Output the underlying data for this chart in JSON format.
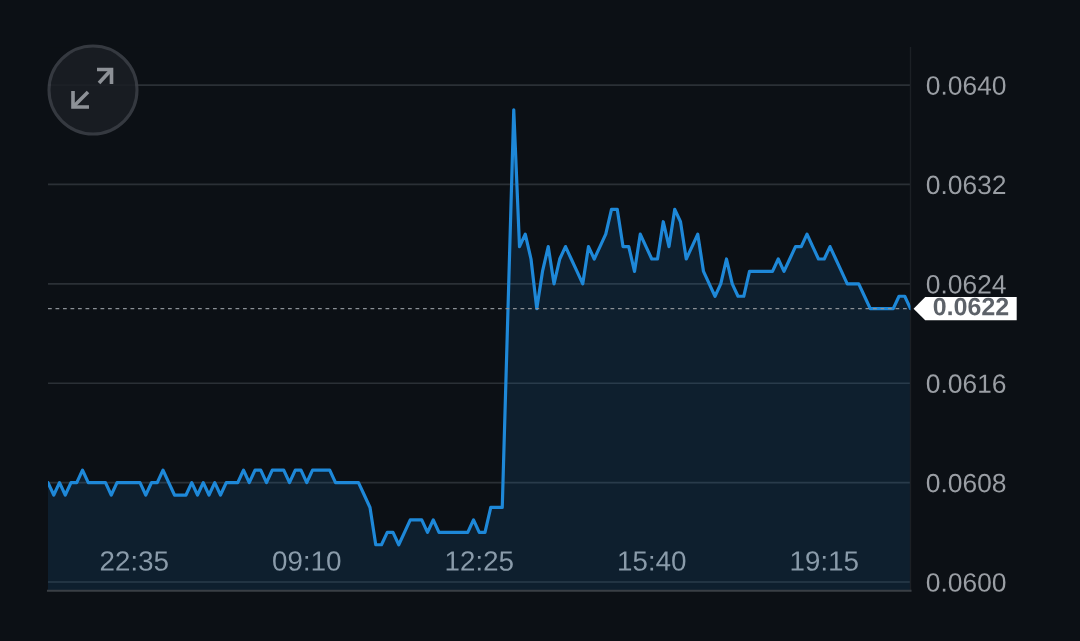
{
  "chart_data": {
    "type": "area",
    "categories": [
      null,
      null,
      null,
      null,
      null,
      null,
      null,
      null,
      null,
      null,
      null,
      null,
      null,
      null,
      null,
      "22:35",
      null,
      null,
      null,
      null,
      null,
      null,
      null,
      null,
      null,
      null,
      null,
      null,
      null,
      null,
      null,
      null,
      null,
      null,
      null,
      null,
      null,
      null,
      null,
      null,
      null,
      null,
      null,
      null,
      null,
      "09:10",
      null,
      null,
      null,
      null,
      null,
      null,
      null,
      null,
      null,
      null,
      null,
      null,
      null,
      null,
      null,
      null,
      null,
      null,
      null,
      null,
      null,
      null,
      null,
      null,
      null,
      null,
      null,
      null,
      null,
      "12:25",
      null,
      null,
      null,
      null,
      null,
      null,
      null,
      null,
      null,
      null,
      null,
      null,
      null,
      null,
      null,
      null,
      null,
      null,
      null,
      null,
      null,
      null,
      null,
      null,
      null,
      null,
      null,
      null,
      null,
      "15:40",
      null,
      null,
      null,
      null,
      null,
      null,
      null,
      null,
      null,
      null,
      null,
      null,
      null,
      null,
      null,
      null,
      null,
      null,
      null,
      null,
      null,
      null,
      null,
      null,
      null,
      null,
      null,
      null,
      null,
      "19:15",
      null,
      null,
      null,
      null,
      null,
      null,
      null,
      null,
      null,
      null,
      null,
      null,
      null,
      null,
      null
    ],
    "series": [
      {
        "color": "#1e88d8",
        "values": [
          0.0608,
          0.0607,
          0.0608,
          0.0607,
          0.0608,
          0.0608,
          0.0609,
          0.0608,
          0.0608,
          0.0608,
          0.0608,
          0.0607,
          0.0608,
          0.0608,
          0.0608,
          0.0608,
          0.0608,
          0.0607,
          0.0608,
          0.0608,
          0.0609,
          0.0608,
          0.0607,
          0.0607,
          0.0607,
          0.0608,
          0.0607,
          0.0608,
          0.0607,
          0.0608,
          0.0607,
          0.0608,
          0.0608,
          0.0608,
          0.0609,
          0.0608,
          0.0609,
          0.0609,
          0.0608,
          0.0609,
          0.0609,
          0.0609,
          0.0608,
          0.0609,
          0.0609,
          0.0608,
          0.0609,
          0.0609,
          0.0609,
          0.0609,
          0.0608,
          0.0608,
          0.0608,
          0.0608,
          0.0608,
          0.0607,
          0.0606,
          0.0603,
          0.0603,
          0.0604,
          0.0604,
          0.0603,
          0.0604,
          0.0605,
          0.0605,
          0.0605,
          0.0604,
          0.0605,
          0.0604,
          0.0604,
          0.0604,
          0.0604,
          0.0604,
          0.0604,
          0.0605,
          0.0604,
          0.0604,
          0.0606,
          0.0606,
          0.0606,
          0.0622,
          0.0638,
          0.0627,
          0.0628,
          0.0626,
          0.0622,
          0.0625,
          0.0627,
          0.0624,
          0.0626,
          0.0627,
          0.0626,
          0.0625,
          0.0624,
          0.0627,
          0.0626,
          0.0627,
          0.0628,
          0.063,
          0.063,
          0.0627,
          0.0627,
          0.0625,
          0.0628,
          0.0627,
          0.0626,
          0.0626,
          0.0629,
          0.0627,
          0.063,
          0.0629,
          0.0626,
          0.0627,
          0.0628,
          0.0625,
          0.0624,
          0.0623,
          0.0624,
          0.0626,
          0.0624,
          0.0623,
          0.0623,
          0.0625,
          0.0625,
          0.0625,
          0.0625,
          0.0625,
          0.0626,
          0.0625,
          0.0626,
          0.0627,
          0.0627,
          0.0628,
          0.0627,
          0.0626,
          0.0626,
          0.0627,
          0.0626,
          0.0625,
          0.0624,
          0.0624,
          0.0624,
          0.0623,
          0.0622,
          0.0622,
          0.0622,
          0.0622,
          0.0622,
          0.0623,
          0.0623,
          0.0622
        ]
      }
    ],
    "ylim": [
      0.05993,
      0.0643
    ],
    "yticks": [
      {
        "value": 0.06,
        "label": "0.0600"
      },
      {
        "value": 0.0608,
        "label": "0.0608"
      },
      {
        "value": 0.0616,
        "label": "0.0616"
      },
      {
        "value": 0.0624,
        "label": "0.0624"
      },
      {
        "value": 0.0632,
        "label": "0.0632"
      },
      {
        "value": 0.064,
        "label": "0.0640"
      }
    ],
    "grid": "y",
    "ref_lines": [
      {
        "axis": "y",
        "value": 0.0622,
        "label": "0.0622",
        "color": "#8a8f95",
        "line_style": "dashed"
      }
    ]
  }
}
